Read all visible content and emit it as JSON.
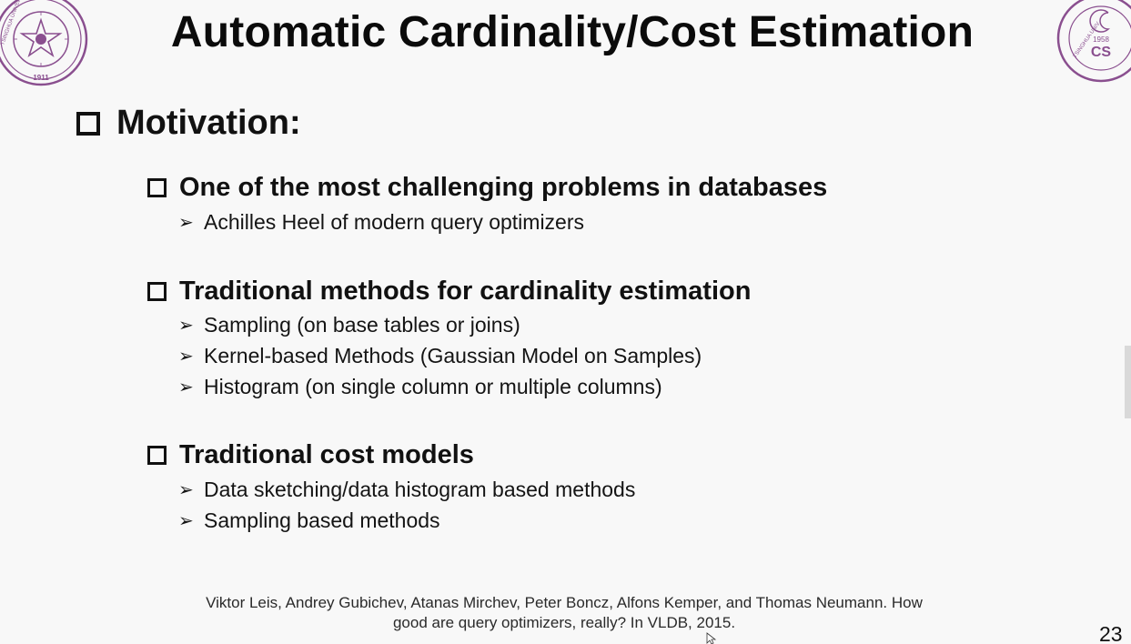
{
  "slide": {
    "title": "Automatic Cardinality/Cost Estimation",
    "section_heading": "Motivation:",
    "groups": [
      {
        "heading": "One of the most challenging problems in databases",
        "items": [
          "Achilles Heel of modern query optimizers"
        ]
      },
      {
        "heading": "Traditional methods for cardinality estimation",
        "items": [
          "Sampling (on base tables or joins)",
          "Kernel-based Methods (Gaussian Model on Samples)",
          "Histogram (on single column or multiple columns)"
        ]
      },
      {
        "heading": "Traditional cost models",
        "items": [
          "Data sketching/data histogram based methods",
          "Sampling based methods"
        ]
      }
    ],
    "citation_line1": "Viktor Leis, Andrey Gubichev, Atanas Mirchev, Peter Boncz, Alfons Kemper, and Thomas Neumann. How",
    "citation_line2": "good are query optimizers, really? In VLDB, 2015.",
    "page_number": "23",
    "bullet_arrow": "➢"
  },
  "logos": {
    "left_icon": "tsinghua-university-seal-icon",
    "left_text": "TSINGHUA UNIVERSITY",
    "left_year": "1911",
    "right_icon": "tsinghua-cs-department-logo-icon",
    "right_text": "TSINGHUA UNIV",
    "right_year": "1958",
    "seal_color": "#8a4f8f"
  }
}
